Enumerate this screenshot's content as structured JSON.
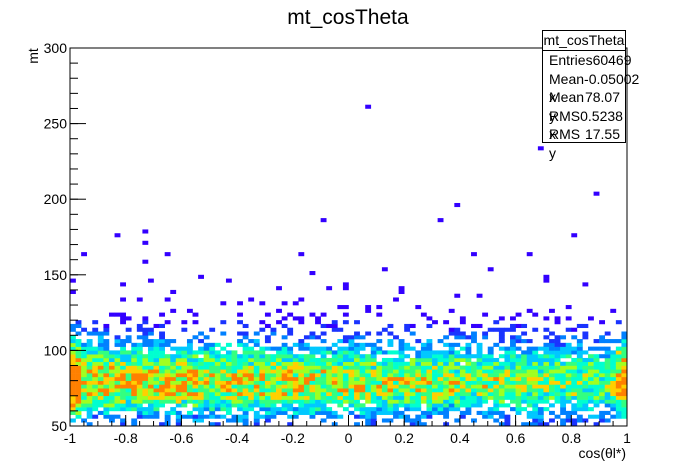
{
  "title": "mt_cosTheta",
  "stats": {
    "name": "mt_cosTheta",
    "rows": [
      {
        "label": "Entries",
        "value": "60469"
      },
      {
        "label": "Mean x",
        "value": "-0.05002"
      },
      {
        "label": "Mean y",
        "value": "78.07"
      },
      {
        "label": "RMS x",
        "value": "0.5238"
      },
      {
        "label": "RMS y",
        "value": "17.55"
      }
    ]
  },
  "colors": {
    "palette": [
      "#3300ff",
      "#1a33ff",
      "#0080ff",
      "#00c8ff",
      "#00ffd0",
      "#33ff80",
      "#a0ff20",
      "#ffd000",
      "#ff8000"
    ]
  },
  "chart_data": {
    "type": "heatmap",
    "title": "mt_cosTheta",
    "xlabel": "cos(θl*)",
    "ylabel": "mt",
    "xlim": [
      -1,
      1
    ],
    "ylim": [
      50,
      300
    ],
    "xticks": [
      "-1",
      "-0.8",
      "-0.6",
      "-0.4",
      "-0.2",
      "0",
      "0.2",
      "0.4",
      "0.6",
      "0.8",
      "1"
    ],
    "yticks": [
      "50",
      "100",
      "150",
      "200",
      "250",
      "300"
    ],
    "entries": 60469,
    "mean_x": -0.05002,
    "mean_y": 78.07,
    "rms_x": 0.5238,
    "rms_y": 17.55,
    "bins_x": 100,
    "bins_y": 100,
    "grid": false,
    "legend": "top-right"
  }
}
